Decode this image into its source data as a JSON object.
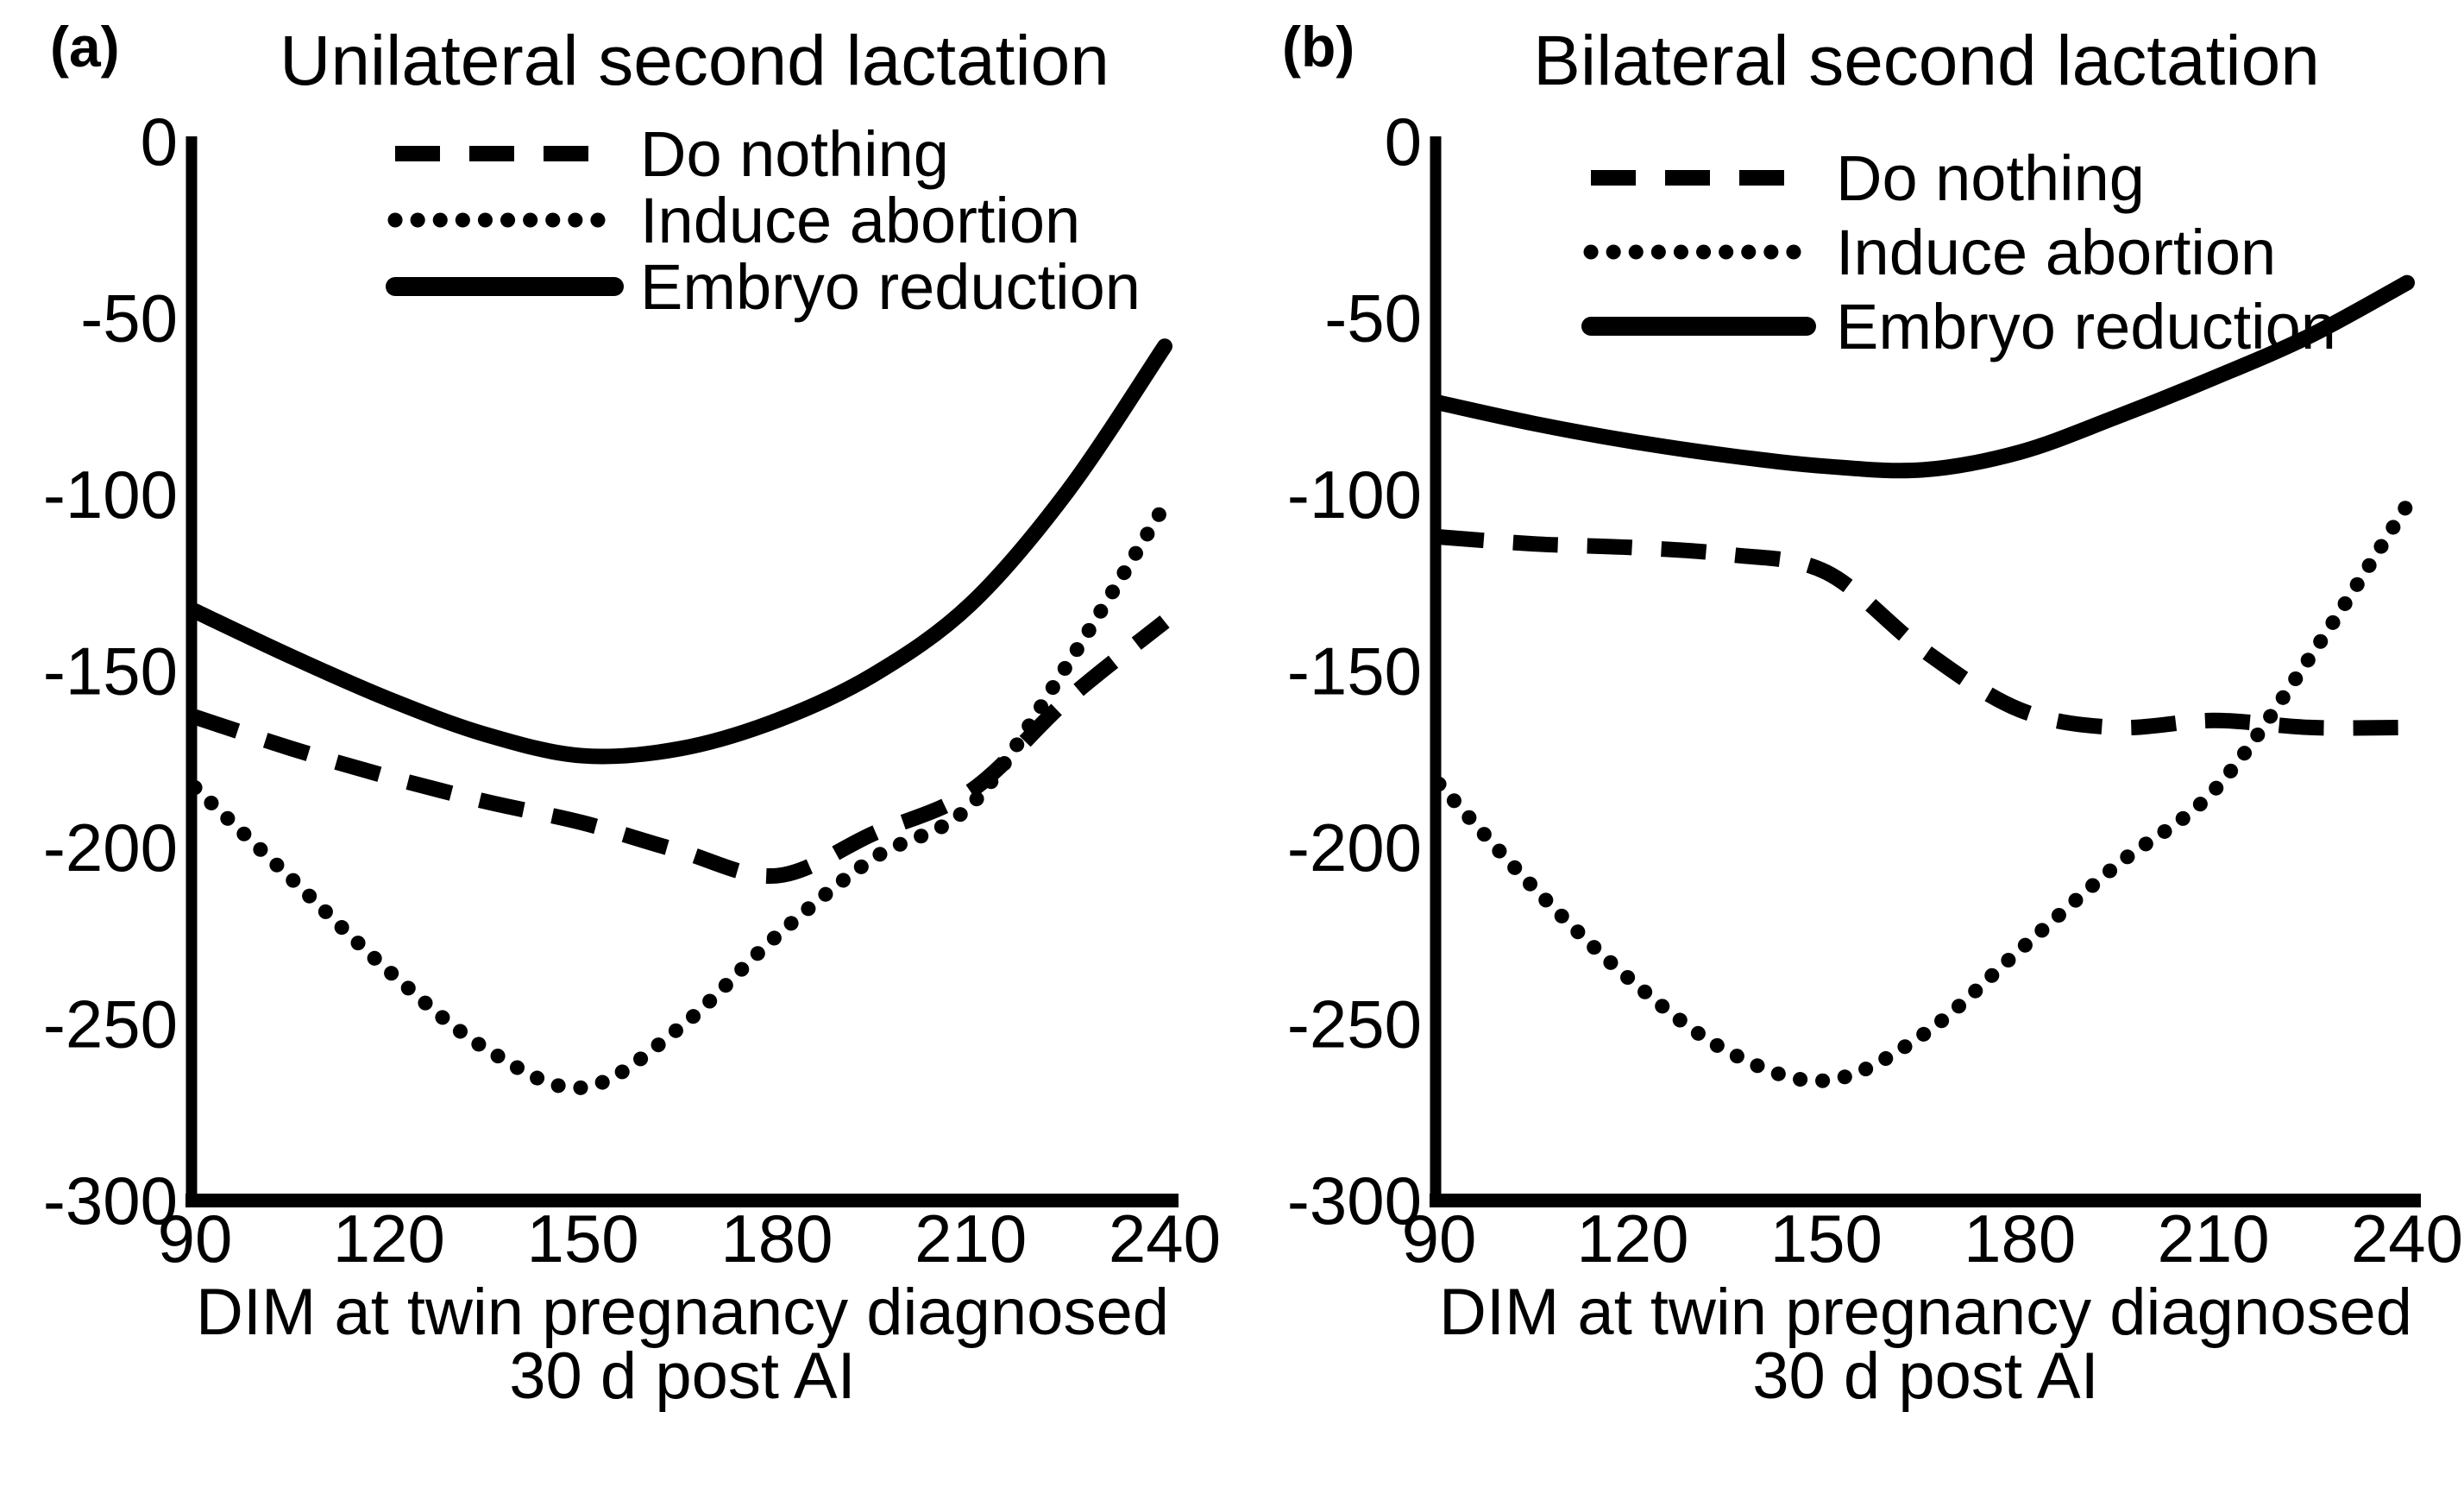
{
  "figure": {
    "background_color": "#ffffff",
    "line_color": "#000000",
    "text_color": "#000000"
  },
  "chart_data": [
    {
      "type": "line",
      "panel_tag": "(a)",
      "title": "Unilateral second lactation",
      "xlabel_line1": "DIM at twin pregnancy diagnosed",
      "xlabel_line2": "30 d post AI",
      "xlim": [
        90,
        240
      ],
      "ylim": [
        -300,
        0
      ],
      "grid": false,
      "legend_position": "top-left-inside",
      "x_tick_values": [
        90,
        120,
        150,
        180,
        210,
        240
      ],
      "x_tick_labels": [
        "90",
        "120",
        "150",
        "180",
        "210",
        "240"
      ],
      "y_tick_values": [
        0,
        -50,
        -100,
        -150,
        -200,
        -250,
        -300
      ],
      "y_tick_labels": [
        "0",
        "-50",
        "-100",
        "-150",
        "-200",
        "-250",
        "-300"
      ],
      "x": [
        90,
        105,
        120,
        135,
        150,
        165,
        180,
        195,
        210,
        225,
        240
      ],
      "series": [
        {
          "name": "Do nothing",
          "line_style": "dashed",
          "values": [
            -163,
            -172,
            -180,
            -187,
            -193,
            -201,
            -208,
            -196,
            -184,
            -158,
            -136
          ]
        },
        {
          "name": "Induce abortion",
          "line_style": "dotted",
          "values": [
            -183,
            -209,
            -235,
            -257,
            -268,
            -251,
            -225,
            -203,
            -188,
            -148,
            -103
          ]
        },
        {
          "name": "Embryo reduction",
          "line_style": "solid",
          "values": [
            -133,
            -146,
            -158,
            -168,
            -174,
            -172,
            -164,
            -151,
            -131,
            -99,
            -58
          ]
        }
      ]
    },
    {
      "type": "line",
      "panel_tag": "(b)",
      "title": "Bilateral second lactation",
      "xlabel_line1": "DIM at twin pregnancy diagnosed",
      "xlabel_line2": "30 d post AI",
      "xlim": [
        90,
        240
      ],
      "ylim": [
        -300,
        0
      ],
      "grid": false,
      "legend_position": "top-left-inside",
      "x_tick_values": [
        90,
        120,
        150,
        180,
        210,
        240
      ],
      "x_tick_labels": [
        "90",
        "120",
        "150",
        "180",
        "210",
        "240"
      ],
      "y_tick_values": [
        0,
        -50,
        -100,
        -150,
        -200,
        -250,
        -300
      ],
      "y_tick_labels": [
        "0",
        "-50",
        "-100",
        "-150",
        "-200",
        "-250",
        "-300"
      ],
      "x": [
        90,
        105,
        120,
        135,
        150,
        165,
        180,
        195,
        210,
        225,
        240
      ],
      "series": [
        {
          "name": "Do nothing",
          "line_style": "dashed",
          "values": [
            -112,
            -114,
            -115,
            -117,
            -122,
            -144,
            -161,
            -166,
            -164,
            -166,
            -166
          ]
        },
        {
          "name": "Induce abortion",
          "line_style": "dotted",
          "values": [
            -182,
            -212,
            -238,
            -258,
            -266,
            -253,
            -229,
            -205,
            -184,
            -146,
            -103
          ]
        },
        {
          "name": "Embryo reduction",
          "line_style": "solid",
          "values": [
            -74,
            -80,
            -85,
            -89,
            -92,
            -93,
            -88,
            -78,
            -67,
            -55,
            -40
          ]
        }
      ]
    }
  ]
}
